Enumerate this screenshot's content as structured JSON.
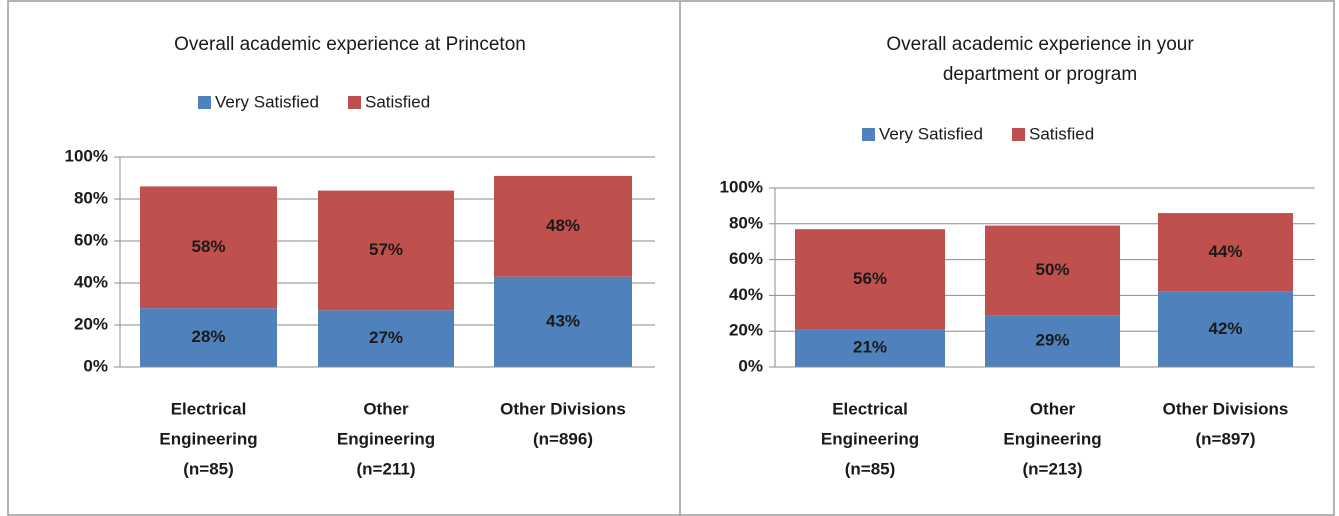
{
  "chart_data": [
    {
      "type": "bar",
      "stacked": true,
      "grid": true,
      "title": "Overall academic experience at Princeton",
      "categories": [
        [
          "Electrical",
          "Engineering",
          "(n=85)"
        ],
        [
          "Other",
          "Engineering",
          "(n=211)"
        ],
        [
          "Other Divisions",
          "(n=896)"
        ]
      ],
      "series": [
        {
          "name": "Very Satisfied",
          "color": "#4f81bd",
          "values": [
            28,
            27,
            43
          ],
          "value_labels": [
            "28%",
            "27%",
            "43%"
          ]
        },
        {
          "name": "Satisfied",
          "color": "#c0504d",
          "values": [
            58,
            57,
            48
          ],
          "value_labels": [
            "58%",
            "57%",
            "48%"
          ]
        }
      ],
      "ylim": [
        0,
        100
      ],
      "yticks": [
        {
          "value": 0,
          "label": "0%"
        },
        {
          "value": 20,
          "label": "20%"
        },
        {
          "value": 40,
          "label": "40%"
        },
        {
          "value": 60,
          "label": "60%"
        },
        {
          "value": 80,
          "label": "80%"
        },
        {
          "value": 100,
          "label": "100%"
        }
      ]
    },
    {
      "type": "bar",
      "stacked": true,
      "grid": true,
      "title": "Overall academic experience in your department or program",
      "categories": [
        [
          "Electrical",
          "Engineering",
          "(n=85)"
        ],
        [
          "Other",
          "Engineering",
          "(n=213)"
        ],
        [
          "Other Divisions",
          "(n=897)"
        ]
      ],
      "series": [
        {
          "name": "Very Satisfied",
          "color": "#4f81bd",
          "values": [
            21,
            29,
            42
          ],
          "value_labels": [
            "21%",
            "29%",
            "42%"
          ]
        },
        {
          "name": "Satisfied",
          "color": "#c0504d",
          "values": [
            56,
            50,
            44
          ],
          "value_labels": [
            "56%",
            "50%",
            "44%"
          ]
        }
      ],
      "ylim": [
        0,
        100
      ],
      "yticks": [
        {
          "value": 0,
          "label": "0%"
        },
        {
          "value": 20,
          "label": "20%"
        },
        {
          "value": 40,
          "label": "40%"
        },
        {
          "value": 60,
          "label": "60%"
        },
        {
          "value": 80,
          "label": "80%"
        },
        {
          "value": 100,
          "label": "100%"
        }
      ]
    }
  ]
}
